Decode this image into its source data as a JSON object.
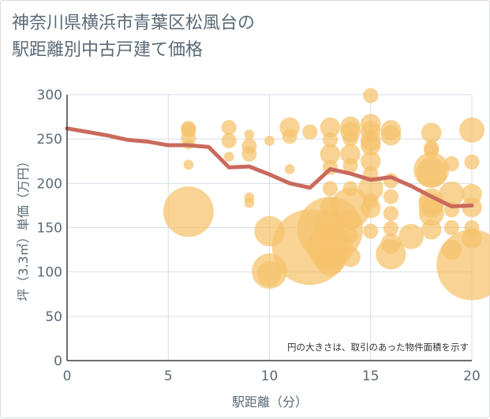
{
  "page": {
    "title_lines": [
      "神奈川県横浜市青葉区松風台の",
      "駅距離別中古戸建て価格"
    ]
  },
  "chart_data": {
    "type": "scatter",
    "xlabel": "駅距離（分）",
    "ylabel": "坪（3.3㎡）単価（万円）",
    "xlim": [
      0,
      20
    ],
    "ylim": [
      0,
      300
    ],
    "x_ticks": [
      0,
      5,
      10,
      15,
      20
    ],
    "y_ticks": [
      0,
      50,
      100,
      150,
      200,
      250,
      300
    ],
    "grid": true,
    "annotation": "円の大きさは、取引のあった物件面積を示す",
    "colors": {
      "bubble": "#f5c26b",
      "line": "#c96a5c",
      "grid": "#d6dee6",
      "text": "#5b6a76"
    },
    "series": [
      {
        "type": "line",
        "x": [
          0,
          1,
          2,
          3,
          4,
          5,
          6,
          7,
          8,
          9,
          10,
          11,
          12,
          13,
          14,
          15,
          16,
          17,
          18,
          19,
          20
        ],
        "y": [
          262,
          258,
          254,
          249,
          247,
          243,
          243,
          241,
          218,
          219,
          210,
          200,
          195,
          216,
          211,
          204,
          207,
          197,
          185,
          174,
          175
        ]
      },
      {
        "type": "bubble",
        "points": [
          {
            "x": 6,
            "y": 262,
            "r": 3
          },
          {
            "x": 6,
            "y": 260,
            "r": 3
          },
          {
            "x": 6,
            "y": 251,
            "r": 3
          },
          {
            "x": 6,
            "y": 244,
            "r": 2
          },
          {
            "x": 6,
            "y": 221,
            "r": 2
          },
          {
            "x": 6,
            "y": 168,
            "r": 10
          },
          {
            "x": 8,
            "y": 263,
            "r": 3
          },
          {
            "x": 8,
            "y": 248,
            "r": 3
          },
          {
            "x": 8,
            "y": 230,
            "r": 2
          },
          {
            "x": 9,
            "y": 255,
            "r": 2
          },
          {
            "x": 9,
            "y": 242,
            "r": 3
          },
          {
            "x": 9,
            "y": 233,
            "r": 3
          },
          {
            "x": 9,
            "y": 184,
            "r": 2
          },
          {
            "x": 9,
            "y": 178,
            "r": 2
          },
          {
            "x": 10,
            "y": 248,
            "r": 2
          },
          {
            "x": 10,
            "y": 146,
            "r": 6
          },
          {
            "x": 10,
            "y": 101,
            "r": 7
          },
          {
            "x": 10,
            "y": 98,
            "r": 5
          },
          {
            "x": 11,
            "y": 263,
            "r": 4
          },
          {
            "x": 11,
            "y": 253,
            "r": 3
          },
          {
            "x": 11,
            "y": 216,
            "r": 2
          },
          {
            "x": 12,
            "y": 258,
            "r": 3
          },
          {
            "x": 12,
            "y": 128,
            "r": 15
          },
          {
            "x": 13,
            "y": 263,
            "r": 4
          },
          {
            "x": 13,
            "y": 249,
            "r": 3
          },
          {
            "x": 13,
            "y": 233,
            "r": 4
          },
          {
            "x": 13,
            "y": 218,
            "r": 3
          },
          {
            "x": 13,
            "y": 194,
            "r": 3
          },
          {
            "x": 13,
            "y": 173,
            "r": 4
          },
          {
            "x": 13,
            "y": 153,
            "r": 6
          },
          {
            "x": 13,
            "y": 148,
            "r": 13
          },
          {
            "x": 13,
            "y": 128,
            "r": 9
          },
          {
            "x": 13,
            "y": 113,
            "r": 6
          },
          {
            "x": 14,
            "y": 264,
            "r": 4
          },
          {
            "x": 14,
            "y": 258,
            "r": 4
          },
          {
            "x": 14,
            "y": 250,
            "r": 3
          },
          {
            "x": 14,
            "y": 233,
            "r": 4
          },
          {
            "x": 14,
            "y": 220,
            "r": 3
          },
          {
            "x": 14,
            "y": 194,
            "r": 3
          },
          {
            "x": 14,
            "y": 172,
            "r": 8
          },
          {
            "x": 14,
            "y": 158,
            "r": 4
          },
          {
            "x": 14,
            "y": 141,
            "r": 3
          },
          {
            "x": 14,
            "y": 117,
            "r": 4
          },
          {
            "x": 15,
            "y": 299,
            "r": 3
          },
          {
            "x": 15,
            "y": 267,
            "r": 4
          },
          {
            "x": 15,
            "y": 259,
            "r": 4
          },
          {
            "x": 15,
            "y": 248,
            "r": 4
          },
          {
            "x": 15,
            "y": 243,
            "r": 4
          },
          {
            "x": 15,
            "y": 225,
            "r": 4
          },
          {
            "x": 15,
            "y": 211,
            "r": 3
          },
          {
            "x": 15,
            "y": 194,
            "r": 5
          },
          {
            "x": 15,
            "y": 180,
            "r": 3
          },
          {
            "x": 15,
            "y": 172,
            "r": 4
          },
          {
            "x": 15,
            "y": 146,
            "r": 3
          },
          {
            "x": 16,
            "y": 260,
            "r": 4
          },
          {
            "x": 16,
            "y": 254,
            "r": 4
          },
          {
            "x": 16,
            "y": 203,
            "r": 3
          },
          {
            "x": 16,
            "y": 185,
            "r": 3
          },
          {
            "x": 16,
            "y": 166,
            "r": 3
          },
          {
            "x": 16,
            "y": 149,
            "r": 3
          },
          {
            "x": 16,
            "y": 132,
            "r": 4
          },
          {
            "x": 16,
            "y": 120,
            "r": 6
          },
          {
            "x": 17,
            "y": 140,
            "r": 5
          },
          {
            "x": 18,
            "y": 257,
            "r": 4
          },
          {
            "x": 18,
            "y": 240,
            "r": 3
          },
          {
            "x": 18,
            "y": 237,
            "r": 3
          },
          {
            "x": 18,
            "y": 215,
            "r": 7
          },
          {
            "x": 18,
            "y": 212,
            "r": 6
          },
          {
            "x": 18,
            "y": 180,
            "r": 5
          },
          {
            "x": 18,
            "y": 175,
            "r": 5
          },
          {
            "x": 18,
            "y": 166,
            "r": 5
          },
          {
            "x": 18,
            "y": 148,
            "r": 4
          },
          {
            "x": 19,
            "y": 222,
            "r": 3
          },
          {
            "x": 19,
            "y": 188,
            "r": 5
          },
          {
            "x": 19,
            "y": 170,
            "r": 3
          },
          {
            "x": 19,
            "y": 150,
            "r": 3
          },
          {
            "x": 19,
            "y": 125,
            "r": 4
          },
          {
            "x": 20,
            "y": 260,
            "r": 5
          },
          {
            "x": 20,
            "y": 224,
            "r": 3
          },
          {
            "x": 20,
            "y": 188,
            "r": 4
          },
          {
            "x": 20,
            "y": 173,
            "r": 4
          },
          {
            "x": 20,
            "y": 150,
            "r": 3
          },
          {
            "x": 20,
            "y": 138,
            "r": 4
          },
          {
            "x": 20,
            "y": 108,
            "r": 14
          }
        ]
      }
    ]
  }
}
